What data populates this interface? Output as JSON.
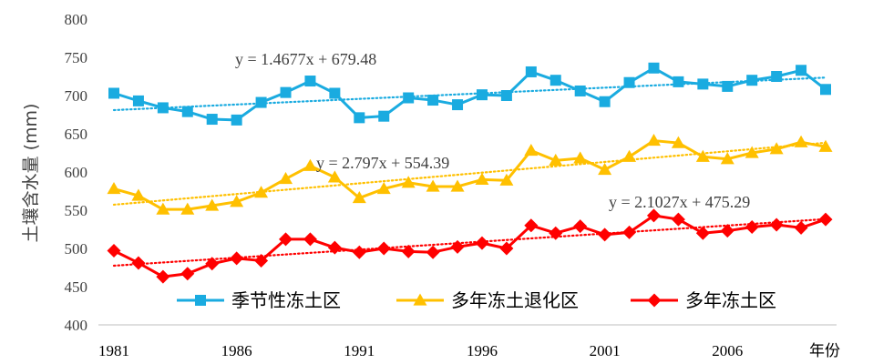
{
  "chart_data": {
    "type": "line",
    "title": "",
    "ylabel": "土壤含水量 (mm)",
    "xlabel": "年份",
    "ylim": [
      400,
      800
    ],
    "yticks": [
      400,
      450,
      500,
      550,
      600,
      650,
      700,
      750,
      800
    ],
    "xlim": [
      1981,
      2010
    ],
    "xticks": [
      "1981",
      "1986",
      "1991",
      "1996",
      "2001",
      "2006"
    ],
    "x": [
      1981,
      1982,
      1983,
      1984,
      1985,
      1986,
      1987,
      1988,
      1989,
      1990,
      1991,
      1992,
      1993,
      1994,
      1995,
      1996,
      1997,
      1998,
      1999,
      2000,
      2001,
      2002,
      2003,
      2004,
      2005,
      2006,
      2007,
      2008,
      2009,
      2010
    ],
    "series": [
      {
        "name": "季节性冻土区",
        "color": "#1AABE0",
        "marker": "square",
        "values": [
          703,
          693,
          684,
          679,
          669,
          668,
          691,
          704,
          719,
          703,
          671,
          673,
          697,
          694,
          688,
          701,
          700,
          731,
          720,
          706,
          692,
          717,
          736,
          718,
          715,
          712,
          720,
          725,
          733,
          708
        ],
        "trend": {
          "slope": 1.4677,
          "intercept": 679.48,
          "label": "y = 1.4677x + 679.48"
        }
      },
      {
        "name": "多年冻土退化区",
        "color": "#FFC000",
        "marker": "triangle",
        "values": [
          578,
          569,
          551,
          551,
          556,
          561,
          573,
          591,
          608,
          593,
          566,
          578,
          586,
          581,
          581,
          590,
          589,
          628,
          615,
          618,
          603,
          620,
          641,
          638,
          620,
          617,
          625,
          630,
          639,
          633
        ],
        "trend": {
          "slope": 2.797,
          "intercept": 554.39,
          "label": "y = 2.797x + 554.39"
        }
      },
      {
        "name": "多年冻土区",
        "color": "#FF0000",
        "marker": "diamond",
        "values": [
          497,
          481,
          463,
          467,
          480,
          487,
          484,
          512,
          512,
          501,
          495,
          500,
          496,
          495,
          502,
          507,
          500,
          530,
          520,
          529,
          518,
          521,
          543,
          538,
          520,
          523,
          528,
          531,
          527,
          538
        ],
        "trend": {
          "slope": 2.1027,
          "intercept": 475.29,
          "label": "y = 2.1027x + 475.29"
        }
      }
    ],
    "legend": "bottom-inside"
  }
}
